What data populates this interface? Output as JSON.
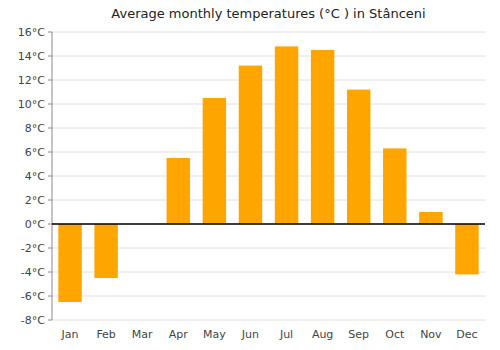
{
  "chart_data": {
    "type": "bar",
    "title": "Average monthly temperatures (°C ) in Stânceni",
    "categories": [
      "Jan",
      "Feb",
      "Mar",
      "Apr",
      "May",
      "Jun",
      "Jul",
      "Aug",
      "Sep",
      "Oct",
      "Nov",
      "Dec"
    ],
    "values": [
      -6.5,
      -4.5,
      0.0,
      5.5,
      10.5,
      13.2,
      14.8,
      14.5,
      11.2,
      6.3,
      1.0,
      -4.2
    ],
    "color": "#FFA500",
    "ylim": [
      -8,
      16
    ],
    "yticks": [
      {
        "value": -8,
        "label": "-8°C"
      },
      {
        "value": -6,
        "label": "-6°C"
      },
      {
        "value": -4,
        "label": "-4°C"
      },
      {
        "value": -2,
        "label": "-2°C"
      },
      {
        "value": 0,
        "label": "0°C"
      },
      {
        "value": 2,
        "label": "2°C"
      },
      {
        "value": 4,
        "label": "4°C"
      },
      {
        "value": 6,
        "label": "6°C"
      },
      {
        "value": 8,
        "label": "8°C"
      },
      {
        "value": 10,
        "label": "10°C"
      },
      {
        "value": 12,
        "label": "12°C"
      },
      {
        "value": 14,
        "label": "14°C"
      },
      {
        "value": 16,
        "label": "16°C"
      }
    ],
    "grid": true
  }
}
